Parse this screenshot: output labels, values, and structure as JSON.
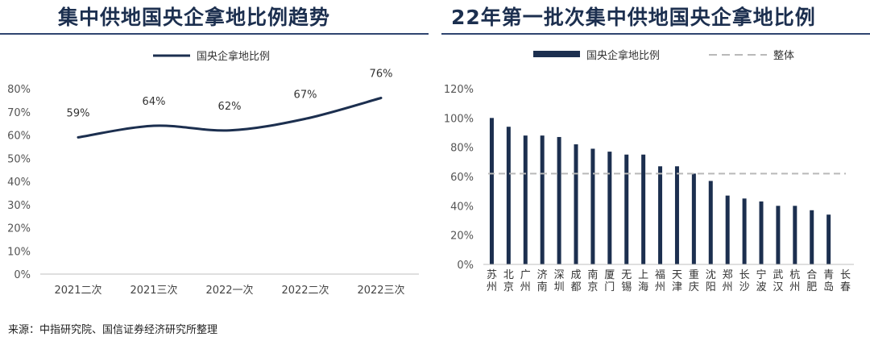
{
  "titles": {
    "left": "集中供地国央企拿地比例趋势",
    "right": "22年第一批次集中供地国央企拿地比例"
  },
  "source": "来源：中指研究院、国信证券经济研究所整理",
  "colors": {
    "series": "#1c2f4f",
    "reference": "#b9b9b9",
    "title": "#1c2f4f"
  },
  "chart_data": [
    {
      "type": "line",
      "legend": [
        "国央企拿地比例"
      ],
      "categories": [
        "2021二次",
        "2021三次",
        "2022一次",
        "2022二次",
        "2022三次"
      ],
      "series": [
        {
          "name": "国央企拿地比例",
          "values": [
            59,
            64,
            62,
            67,
            76
          ],
          "labels": [
            "59%",
            "64%",
            "62%",
            "67%",
            "76%"
          ]
        }
      ],
      "yticks": [
        "0%",
        "10%",
        "20%",
        "30%",
        "40%",
        "50%",
        "60%",
        "70%",
        "80%"
      ],
      "ylim": [
        0,
        80
      ],
      "smooth": true,
      "legend_position": "top"
    },
    {
      "type": "bar",
      "legend": [
        "国央企拿地比例",
        "整体"
      ],
      "categories": [
        "苏州",
        "北京",
        "广州",
        "济南",
        "深圳",
        "成都",
        "南京",
        "厦门",
        "无锡",
        "上海",
        "福州",
        "天津",
        "重庆",
        "沈阳",
        "郑州",
        "长沙",
        "宁波",
        "武汉",
        "杭州",
        "合肥",
        "青岛",
        "长春"
      ],
      "series": [
        {
          "name": "国央企拿地比例",
          "values": [
            100,
            94,
            88,
            88,
            87,
            82,
            79,
            77,
            75,
            75,
            67,
            67,
            62,
            57,
            47,
            45,
            43,
            40,
            40,
            37,
            34,
            0
          ]
        }
      ],
      "reference_line": {
        "name": "整体",
        "value": 62
      },
      "yticks": [
        "0%",
        "20%",
        "40%",
        "60%",
        "80%",
        "100%",
        "120%"
      ],
      "ylim": [
        0,
        120
      ],
      "legend_position": "top"
    }
  ]
}
